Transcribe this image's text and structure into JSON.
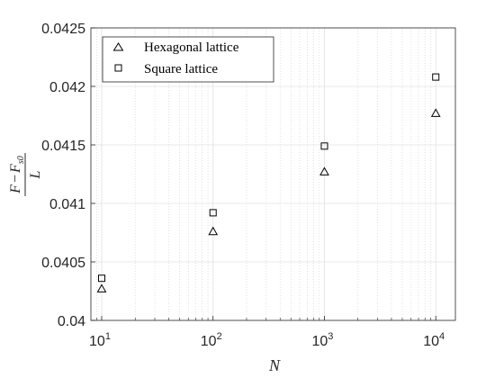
{
  "chart_data": {
    "type": "scatter",
    "xscale": "log",
    "xlim": [
      8,
      15000
    ],
    "ylim": [
      0.04,
      0.0425
    ],
    "xticks": [
      {
        "value": 10,
        "base": "10",
        "exp": "1"
      },
      {
        "value": 100,
        "base": "10",
        "exp": "2"
      },
      {
        "value": 1000,
        "base": "10",
        "exp": "3"
      },
      {
        "value": 10000,
        "base": "10",
        "exp": "4"
      }
    ],
    "yticks": [
      {
        "value": 0.04,
        "label": "0.04"
      },
      {
        "value": 0.0405,
        "label": "0.0405"
      },
      {
        "value": 0.041,
        "label": "0.041"
      },
      {
        "value": 0.0415,
        "label": "0.0415"
      },
      {
        "value": 0.042,
        "label": "0.042"
      },
      {
        "value": 0.0425,
        "label": "0.0425"
      }
    ],
    "grid": true,
    "legend_position": "top-left",
    "xlabel": "N",
    "ylabel": {
      "num_main": "F",
      "num_minus": "−",
      "num_sub_base": "F",
      "num_sub": "s0",
      "den": "L"
    },
    "series": [
      {
        "name": "Hexagonal lattice",
        "marker": "triangle",
        "x": [
          10,
          100,
          1000,
          10000
        ],
        "y": [
          0.04027,
          0.04076,
          0.04127,
          0.04177
        ]
      },
      {
        "name": "Square lattice",
        "marker": "square",
        "x": [
          10,
          100,
          1000,
          10000
        ],
        "y": [
          0.04036,
          0.04092,
          0.04149,
          0.04208
        ]
      }
    ]
  }
}
